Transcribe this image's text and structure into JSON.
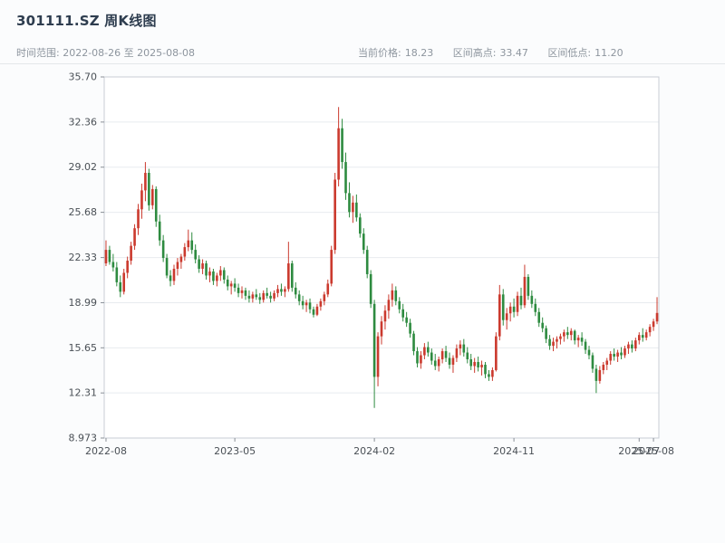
{
  "header": {
    "title": "301111.SZ 周K线图",
    "time_range": "时间范围: 2022-08-26 至 2025-08-08",
    "stats": [
      {
        "label": "当前价格:",
        "value": "18.23"
      },
      {
        "label": "区间高点:",
        "value": "33.47"
      },
      {
        "label": "区间低点:",
        "value": "11.20"
      }
    ]
  },
  "chart_data": {
    "type": "candlestick",
    "title": "301111.SZ 周K线图",
    "symbol": "301111.SZ",
    "frequency": "weekly",
    "current_price": 18.23,
    "range_high": 33.47,
    "range_low": 11.2,
    "ylim": [
      8.973,
      35.7
    ],
    "y_tick_labels": [
      "35.70",
      "32.36",
      "29.02",
      "25.68",
      "22.33",
      "18.99",
      "15.65",
      "12.31",
      "8.973"
    ],
    "x_ticks": [
      {
        "index": 0,
        "label": "2022-08"
      },
      {
        "index": 36,
        "label": "2023-05"
      },
      {
        "index": 75,
        "label": "2024-02"
      },
      {
        "index": 114,
        "label": "2024-11"
      },
      {
        "index": 149,
        "label": "2025-07"
      },
      {
        "index": 153,
        "label": "2025-08"
      }
    ],
    "up_color": "#cb3a2e",
    "down_color": "#2e8b40",
    "grid": true,
    "legend": false,
    "dates": [
      "2022-08-26",
      "2022-09-02",
      "2022-09-09",
      "2022-09-16",
      "2022-09-23",
      "2022-09-30",
      "2022-10-07",
      "2022-10-14",
      "2022-10-21",
      "2022-10-28",
      "2022-11-04",
      "2022-11-11",
      "2022-11-18",
      "2022-11-25",
      "2022-12-02",
      "2022-12-09",
      "2022-12-16",
      "2022-12-23",
      "2022-12-30",
      "2023-01-06",
      "2023-01-13",
      "2023-01-20",
      "2023-01-27",
      "2023-02-03",
      "2023-02-10",
      "2023-02-17",
      "2023-02-24",
      "2023-03-03",
      "2023-03-10",
      "2023-03-17",
      "2023-03-24",
      "2023-03-31",
      "2023-04-07",
      "2023-04-14",
      "2023-04-21",
      "2023-04-28",
      "2023-05-05",
      "2023-05-12",
      "2023-05-19",
      "2023-05-26",
      "2023-06-02",
      "2023-06-09",
      "2023-06-16",
      "2023-06-23",
      "2023-06-30",
      "2023-07-07",
      "2023-07-14",
      "2023-07-21",
      "2023-07-28",
      "2023-08-04",
      "2023-08-11",
      "2023-08-18",
      "2023-08-25",
      "2023-09-01",
      "2023-09-08",
      "2023-09-15",
      "2023-09-22",
      "2023-09-29",
      "2023-10-06",
      "2023-10-13",
      "2023-10-20",
      "2023-10-27",
      "2023-11-03",
      "2023-11-10",
      "2023-11-17",
      "2023-11-24",
      "2023-12-01",
      "2023-12-08",
      "2023-12-15",
      "2023-12-22",
      "2023-12-29",
      "2024-01-05",
      "2024-01-12",
      "2024-01-19",
      "2024-01-26",
      "2024-02-02",
      "2024-02-09",
      "2024-02-16",
      "2024-02-23",
      "2024-03-01",
      "2024-03-08",
      "2024-03-15",
      "2024-03-22",
      "2024-03-29",
      "2024-04-05",
      "2024-04-12",
      "2024-04-19",
      "2024-04-26",
      "2024-05-03",
      "2024-05-10",
      "2024-05-17",
      "2024-05-24",
      "2024-05-31",
      "2024-06-07",
      "2024-06-14",
      "2024-06-21",
      "2024-06-28",
      "2024-07-05",
      "2024-07-12",
      "2024-07-19",
      "2024-07-26",
      "2024-08-02",
      "2024-08-09",
      "2024-08-16",
      "2024-08-23",
      "2024-08-30",
      "2024-09-06",
      "2024-09-13",
      "2024-09-20",
      "2024-09-27",
      "2024-10-04",
      "2024-10-11",
      "2024-10-18",
      "2024-10-25",
      "2024-11-01",
      "2024-11-08",
      "2024-11-15",
      "2024-11-22",
      "2024-11-29",
      "2024-12-06",
      "2024-12-13",
      "2024-12-20",
      "2024-12-27",
      "2025-01-03",
      "2025-01-10",
      "2025-01-17",
      "2025-01-24",
      "2025-01-31",
      "2025-02-07",
      "2025-02-14",
      "2025-02-21",
      "2025-02-28",
      "2025-03-07",
      "2025-03-14",
      "2025-03-21",
      "2025-03-28",
      "2025-04-04",
      "2025-04-11",
      "2025-04-18",
      "2025-04-25",
      "2025-05-02",
      "2025-05-09",
      "2025-05-16",
      "2025-05-23",
      "2025-05-30",
      "2025-06-06",
      "2025-06-13",
      "2025-06-20",
      "2025-06-27",
      "2025-07-04",
      "2025-07-11",
      "2025-07-18",
      "2025-07-25",
      "2025-08-01",
      "2025-08-08"
    ],
    "ohlc": [
      [
        21.9,
        23.6,
        21.7,
        22.9
      ],
      [
        22.9,
        23.2,
        21.8,
        22.0
      ],
      [
        22.0,
        22.6,
        21.3,
        21.6
      ],
      [
        21.6,
        22.0,
        20.2,
        20.5
      ],
      [
        20.5,
        21.0,
        19.4,
        19.8
      ],
      [
        19.8,
        21.5,
        19.6,
        21.2
      ],
      [
        21.2,
        22.4,
        20.8,
        22.1
      ],
      [
        22.1,
        23.5,
        21.8,
        23.2
      ],
      [
        23.2,
        24.8,
        22.9,
        24.5
      ],
      [
        24.5,
        26.3,
        24.0,
        25.9
      ],
      [
        25.9,
        27.8,
        25.2,
        27.3
      ],
      [
        27.3,
        29.4,
        26.5,
        28.6
      ],
      [
        28.6,
        28.9,
        25.8,
        26.2
      ],
      [
        26.2,
        27.7,
        25.9,
        27.4
      ],
      [
        27.4,
        27.6,
        24.6,
        25.0
      ],
      [
        25.0,
        25.5,
        23.2,
        23.6
      ],
      [
        23.6,
        24.0,
        22.0,
        22.3
      ],
      [
        22.3,
        22.6,
        20.8,
        21.0
      ],
      [
        21.0,
        21.4,
        20.2,
        20.6
      ],
      [
        20.6,
        21.8,
        20.3,
        21.5
      ],
      [
        21.5,
        22.3,
        21.0,
        22.0
      ],
      [
        22.0,
        22.6,
        21.5,
        22.4
      ],
      [
        22.4,
        23.4,
        22.1,
        23.1
      ],
      [
        23.1,
        24.4,
        22.8,
        23.6
      ],
      [
        23.6,
        24.2,
        22.6,
        22.9
      ],
      [
        22.9,
        23.3,
        21.9,
        22.2
      ],
      [
        22.2,
        22.5,
        21.2,
        21.5
      ],
      [
        21.5,
        22.2,
        21.1,
        21.9
      ],
      [
        21.9,
        22.1,
        20.7,
        21.0
      ],
      [
        21.0,
        21.6,
        20.5,
        21.3
      ],
      [
        21.3,
        21.5,
        20.3,
        20.6
      ],
      [
        20.6,
        21.2,
        20.2,
        21.0
      ],
      [
        21.0,
        21.7,
        20.6,
        21.4
      ],
      [
        21.4,
        21.6,
        20.4,
        20.7
      ],
      [
        20.7,
        21.0,
        19.9,
        20.2
      ],
      [
        20.2,
        20.6,
        19.6,
        20.4
      ],
      [
        20.4,
        20.8,
        19.8,
        20.1
      ],
      [
        20.1,
        20.4,
        19.4,
        19.7
      ],
      [
        19.7,
        20.2,
        19.3,
        19.9
      ],
      [
        19.9,
        20.1,
        19.2,
        19.5
      ],
      [
        19.5,
        19.9,
        19.0,
        19.3
      ],
      [
        19.3,
        19.8,
        19.0,
        19.6
      ],
      [
        19.6,
        20.0,
        19.2,
        19.4
      ],
      [
        19.4,
        19.7,
        18.9,
        19.2
      ],
      [
        19.2,
        19.9,
        19.0,
        19.7
      ],
      [
        19.7,
        20.1,
        19.3,
        19.5
      ],
      [
        19.5,
        19.8,
        19.0,
        19.3
      ],
      [
        19.3,
        19.9,
        19.1,
        19.7
      ],
      [
        19.7,
        20.3,
        19.4,
        20.0
      ],
      [
        20.0,
        20.4,
        19.5,
        19.8
      ],
      [
        19.8,
        20.2,
        19.4,
        20.0
      ],
      [
        20.0,
        23.5,
        19.8,
        21.9
      ],
      [
        21.9,
        22.1,
        19.8,
        20.1
      ],
      [
        20.1,
        20.5,
        19.3,
        19.6
      ],
      [
        19.6,
        19.9,
        18.8,
        19.1
      ],
      [
        19.1,
        19.5,
        18.5,
        18.8
      ],
      [
        18.8,
        19.2,
        18.3,
        19.0
      ],
      [
        19.0,
        19.3,
        18.2,
        18.5
      ],
      [
        18.5,
        18.7,
        17.9,
        18.1
      ],
      [
        18.1,
        18.9,
        18.0,
        18.7
      ],
      [
        18.7,
        19.3,
        18.4,
        19.1
      ],
      [
        19.1,
        19.8,
        18.8,
        19.6
      ],
      [
        19.6,
        20.7,
        19.4,
        20.4
      ],
      [
        20.4,
        23.2,
        20.2,
        22.9
      ],
      [
        22.9,
        28.6,
        22.6,
        28.1
      ],
      [
        28.1,
        33.47,
        27.6,
        31.9
      ],
      [
        31.9,
        32.6,
        28.9,
        29.4
      ],
      [
        29.4,
        30.1,
        26.6,
        27.1
      ],
      [
        27.1,
        27.9,
        25.3,
        25.7
      ],
      [
        25.7,
        26.9,
        24.9,
        26.4
      ],
      [
        26.4,
        27.0,
        25.0,
        25.3
      ],
      [
        25.3,
        25.6,
        23.8,
        24.1
      ],
      [
        24.1,
        24.5,
        22.6,
        22.9
      ],
      [
        22.9,
        23.2,
        20.8,
        21.1
      ],
      [
        21.1,
        21.4,
        18.6,
        18.9
      ],
      [
        18.9,
        19.2,
        11.2,
        13.5
      ],
      [
        13.5,
        16.8,
        12.8,
        16.5
      ],
      [
        16.5,
        18.0,
        15.9,
        17.6
      ],
      [
        17.6,
        18.8,
        17.0,
        18.4
      ],
      [
        18.4,
        19.6,
        17.8,
        19.2
      ],
      [
        19.2,
        20.4,
        18.7,
        19.9
      ],
      [
        19.9,
        20.2,
        18.8,
        19.1
      ],
      [
        19.1,
        19.4,
        18.2,
        18.5
      ],
      [
        18.5,
        18.9,
        17.6,
        17.9
      ],
      [
        17.9,
        18.3,
        17.2,
        17.5
      ],
      [
        17.5,
        17.8,
        16.4,
        16.7
      ],
      [
        16.7,
        16.9,
        15.1,
        15.4
      ],
      [
        15.4,
        15.7,
        14.2,
        14.5
      ],
      [
        14.5,
        15.4,
        14.1,
        15.1
      ],
      [
        15.1,
        16.0,
        14.8,
        15.7
      ],
      [
        15.7,
        16.1,
        15.0,
        15.3
      ],
      [
        15.3,
        15.6,
        14.4,
        14.7
      ],
      [
        14.7,
        15.2,
        14.0,
        14.3
      ],
      [
        14.3,
        15.0,
        13.9,
        14.8
      ],
      [
        14.8,
        15.6,
        14.5,
        15.4
      ],
      [
        15.4,
        15.8,
        14.6,
        14.9
      ],
      [
        14.9,
        15.3,
        14.1,
        14.4
      ],
      [
        14.4,
        15.1,
        13.8,
        14.9
      ],
      [
        14.9,
        15.9,
        14.6,
        15.6
      ],
      [
        15.6,
        16.2,
        15.1,
        15.9
      ],
      [
        15.9,
        16.3,
        15.0,
        15.3
      ],
      [
        15.3,
        15.7,
        14.5,
        14.8
      ],
      [
        14.8,
        15.2,
        14.0,
        14.3
      ],
      [
        14.3,
        14.9,
        13.8,
        14.6
      ],
      [
        14.6,
        15.0,
        13.9,
        14.2
      ],
      [
        14.2,
        14.7,
        13.6,
        14.4
      ],
      [
        14.4,
        14.6,
        13.4,
        13.7
      ],
      [
        13.7,
        14.0,
        13.2,
        13.5
      ],
      [
        13.5,
        14.2,
        13.2,
        14.0
      ],
      [
        14.0,
        16.8,
        13.9,
        16.5
      ],
      [
        16.5,
        20.3,
        16.2,
        19.6
      ],
      [
        19.6,
        20.0,
        17.3,
        17.7
      ],
      [
        17.7,
        18.6,
        17.0,
        18.2
      ],
      [
        18.2,
        19.0,
        17.6,
        18.7
      ],
      [
        18.7,
        19.3,
        17.9,
        18.3
      ],
      [
        18.3,
        19.8,
        18.0,
        19.5
      ],
      [
        19.5,
        20.1,
        18.5,
        18.8
      ],
      [
        18.8,
        21.8,
        18.6,
        20.9
      ],
      [
        20.9,
        21.1,
        19.2,
        19.5
      ],
      [
        19.5,
        19.9,
        18.6,
        18.9
      ],
      [
        18.9,
        19.3,
        18.0,
        18.3
      ],
      [
        18.3,
        18.6,
        17.2,
        17.5
      ],
      [
        17.5,
        17.9,
        16.8,
        17.1
      ],
      [
        17.1,
        17.3,
        16.0,
        16.3
      ],
      [
        16.3,
        16.6,
        15.5,
        15.8
      ],
      [
        15.8,
        16.4,
        15.4,
        16.1
      ],
      [
        16.1,
        16.5,
        15.6,
        16.3
      ],
      [
        16.3,
        16.7,
        15.9,
        16.5
      ],
      [
        16.5,
        17.0,
        16.1,
        16.8
      ],
      [
        16.8,
        17.2,
        16.3,
        16.6
      ],
      [
        16.6,
        17.1,
        16.2,
        16.9
      ],
      [
        16.9,
        17.0,
        15.9,
        16.2
      ],
      [
        16.2,
        16.6,
        15.7,
        16.4
      ],
      [
        16.4,
        16.8,
        15.8,
        16.1
      ],
      [
        16.1,
        16.3,
        15.2,
        15.5
      ],
      [
        15.5,
        15.8,
        14.8,
        15.1
      ],
      [
        15.1,
        15.3,
        13.8,
        14.1
      ],
      [
        14.1,
        14.4,
        12.3,
        13.2
      ],
      [
        13.2,
        14.3,
        13.0,
        14.0
      ],
      [
        14.0,
        14.6,
        13.7,
        14.4
      ],
      [
        14.4,
        14.9,
        14.0,
        14.7
      ],
      [
        14.7,
        15.4,
        14.4,
        15.2
      ],
      [
        15.2,
        15.6,
        14.7,
        15.0
      ],
      [
        15.0,
        15.5,
        14.6,
        15.3
      ],
      [
        15.3,
        15.7,
        14.8,
        15.1
      ],
      [
        15.1,
        15.8,
        14.9,
        15.6
      ],
      [
        15.6,
        16.1,
        15.2,
        15.9
      ],
      [
        15.9,
        16.2,
        15.3,
        15.6
      ],
      [
        15.6,
        16.4,
        15.4,
        16.2
      ],
      [
        16.2,
        16.8,
        15.9,
        16.6
      ],
      [
        16.6,
        17.1,
        16.1,
        16.4
      ],
      [
        16.4,
        17.0,
        16.2,
        16.8
      ],
      [
        16.8,
        17.4,
        16.5,
        17.2
      ],
      [
        17.2,
        17.8,
        16.9,
        17.6
      ],
      [
        17.6,
        19.4,
        17.4,
        18.23
      ]
    ]
  }
}
